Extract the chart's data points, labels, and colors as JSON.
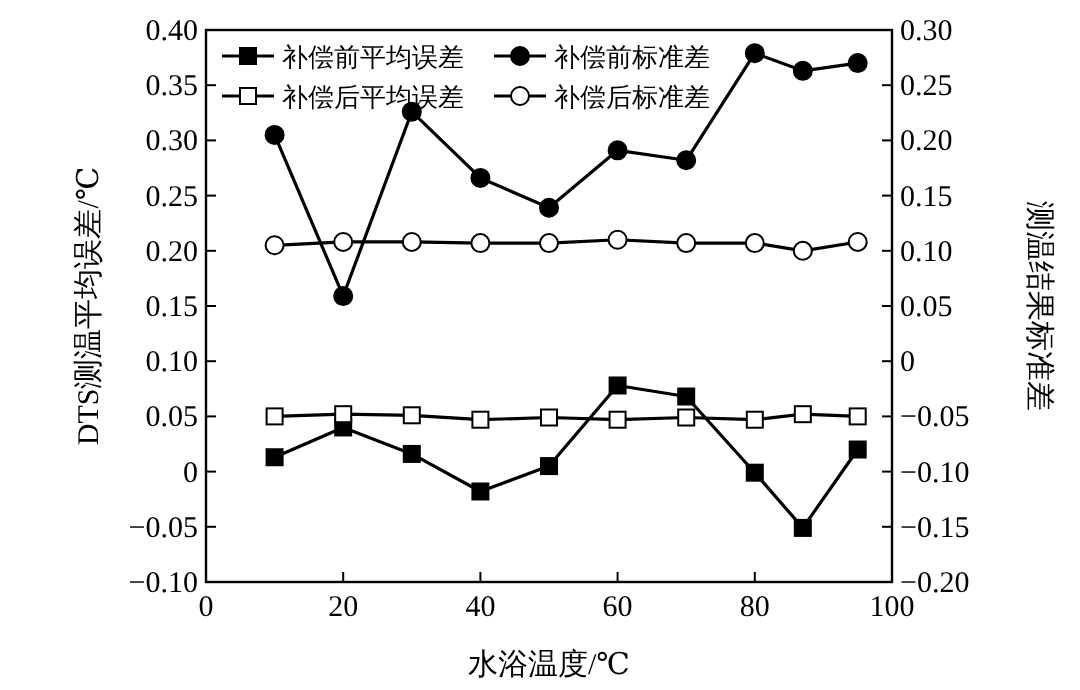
{
  "chart_data": {
    "type": "line",
    "xlabel": "水浴温度/℃",
    "ylabel": "DTS测温平均误差/℃",
    "y2label": "测温结果标准差",
    "x": [
      10,
      20,
      30,
      40,
      50,
      60,
      70,
      80,
      87,
      95
    ],
    "xlim": [
      0,
      100
    ],
    "xticks": [
      0,
      20,
      40,
      60,
      80,
      100
    ],
    "ylim": [
      -0.1,
      0.4
    ],
    "yticks": [
      {
        "value": -0.1,
        "label": "−0.10"
      },
      {
        "value": -0.05,
        "label": "−0.05"
      },
      0,
      {
        "value": 0.05,
        "label": "0.05"
      },
      {
        "value": 0.1,
        "label": "0.10"
      },
      {
        "value": 0.15,
        "label": "0.15"
      },
      {
        "value": 0.2,
        "label": "0.20"
      },
      {
        "value": 0.25,
        "label": "0.25"
      },
      {
        "value": 0.3,
        "label": "0.30"
      },
      {
        "value": 0.35,
        "label": "0.35"
      },
      {
        "value": 0.4,
        "label": "0.40"
      }
    ],
    "y2lim": [
      -0.2,
      0.3
    ],
    "y2ticks": [
      {
        "value": -0.2,
        "label": "−0.20"
      },
      {
        "value": -0.15,
        "label": "−0.15"
      },
      {
        "value": -0.1,
        "label": "−0.10"
      },
      {
        "value": -0.05,
        "label": "−0.05"
      },
      0,
      {
        "value": 0.05,
        "label": "0.05"
      },
      {
        "value": 0.1,
        "label": "0.10"
      },
      {
        "value": 0.15,
        "label": "0.15"
      },
      {
        "value": 0.2,
        "label": "0.20"
      },
      {
        "value": 0.25,
        "label": "0.25"
      },
      {
        "value": 0.3,
        "label": "0.30"
      }
    ],
    "grid": false,
    "legend": "top left",
    "line_style": "solid",
    "series": [
      {
        "name": "补偿前平均误差",
        "color": "#000000",
        "marker": "square",
        "values": [
          0.013,
          0.04,
          0.016,
          -0.018,
          0.005,
          0.078,
          0.068,
          -0.001,
          -0.051,
          0.02
        ]
      },
      {
        "name": "补偿前标准差",
        "color": "#000000",
        "marker": "circle",
        "axis": "y2",
        "values": [
          0.205,
          0.059,
          0.226,
          0.166,
          0.139,
          0.191,
          0.182,
          0.279,
          0.263,
          0.27
        ]
      },
      {
        "name": "补偿后平均误差",
        "color": "#000000",
        "marker": "square",
        "colors": [
          "#ffffff",
          "#ffffff",
          "#ffffff",
          "#ffffff",
          "#ffffff",
          "#ffffff",
          "#ffffff",
          "#ffffff",
          "#ffffff",
          "#ffffff"
        ],
        "values": [
          0.05,
          0.052,
          0.051,
          0.047,
          0.049,
          0.047,
          0.049,
          0.047,
          0.052,
          0.05
        ]
      },
      {
        "name": "补偿后标准差",
        "color": "#000000",
        "marker": "circle",
        "colors": [
          "#ffffff",
          "#ffffff",
          "#ffffff",
          "#ffffff",
          "#ffffff",
          "#ffffff",
          "#ffffff",
          "#ffffff",
          "#ffffff",
          "#ffffff"
        ],
        "axis": "y2",
        "values": [
          0.105,
          0.108,
          0.108,
          0.107,
          0.107,
          0.11,
          0.107,
          0.107,
          0.1,
          0.108
        ]
      }
    ]
  }
}
